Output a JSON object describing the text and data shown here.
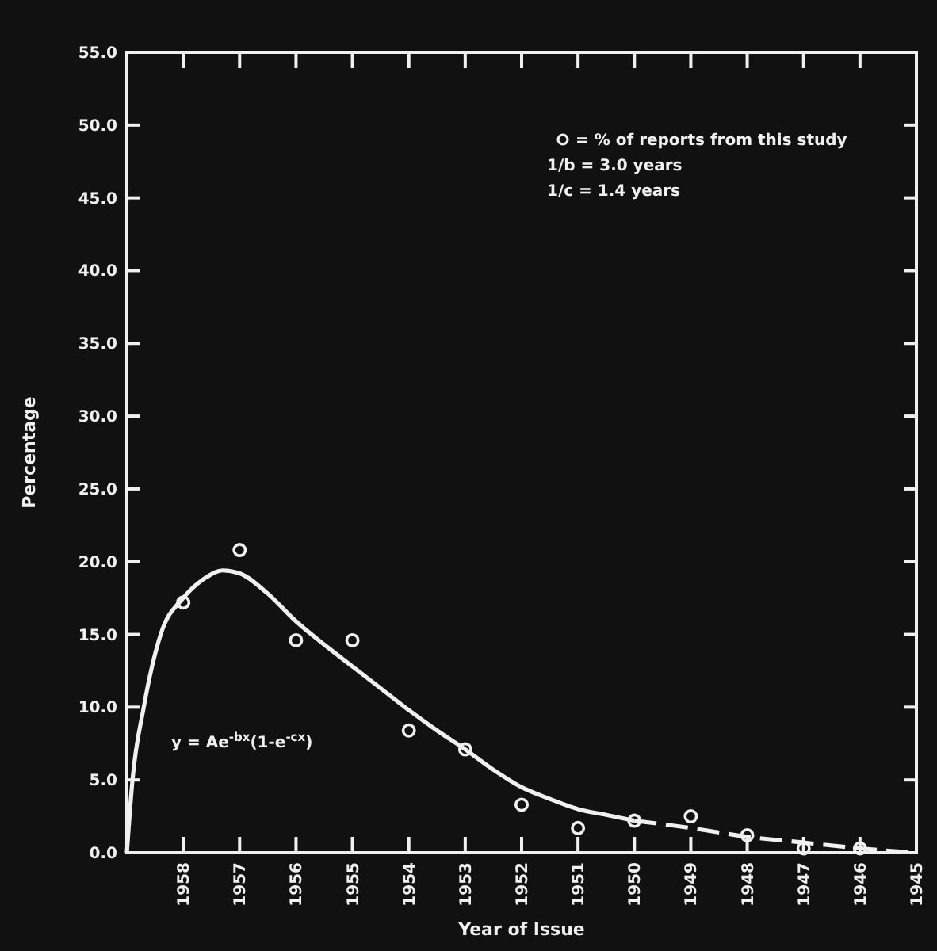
{
  "chart_data": {
    "type": "scatter",
    "xlabel": "Year of Issue",
    "ylabel": "Percentage",
    "xlim": [
      1959,
      1945
    ],
    "xticks": [
      1958,
      1957,
      1956,
      1955,
      1954,
      1953,
      1952,
      1951,
      1950,
      1949,
      1948,
      1947,
      1946,
      1945
    ],
    "ylim": [
      0,
      55
    ],
    "yticks": [
      {
        "value": 0,
        "label": "0.0"
      },
      {
        "value": 5,
        "label": "5.0"
      },
      {
        "value": 10,
        "label": "10.0"
      },
      {
        "value": 15,
        "label": "15.0"
      },
      {
        "value": 20,
        "label": "20.0"
      },
      {
        "value": 25,
        "label": "25.0"
      },
      {
        "value": 30,
        "label": "30.0"
      },
      {
        "value": 35,
        "label": "35.0"
      },
      {
        "value": 40,
        "label": "40.0"
      },
      {
        "value": 45,
        "label": "45.0"
      },
      {
        "value": 50,
        "label": "50.0"
      },
      {
        "value": 55,
        "label": "55.0"
      }
    ],
    "grid": false,
    "legend": "top right",
    "marker": "circle",
    "series": [
      {
        "name": "= % of reports from this study",
        "color": "#f0f0f0",
        "x": [
          1958,
          1957,
          1956,
          1955,
          1954,
          1953,
          1952,
          1951,
          1950,
          1949,
          1948,
          1947,
          1946
        ],
        "values": [
          17.2,
          20.8,
          14.6,
          14.6,
          8.4,
          7.1,
          3.3,
          1.7,
          2.2,
          2.5,
          1.2,
          0.3,
          0.3
        ]
      },
      {
        "type": "line",
        "color": "#f0f0f0",
        "line_style": "solid",
        "marker": "none",
        "x": [
          1959,
          1958.9,
          1958.7,
          1958.4,
          1958,
          1957.6,
          1957.3,
          1957,
          1956.5,
          1956,
          1955.5,
          1955,
          1954.5,
          1954,
          1953.5,
          1953,
          1952.5,
          1952,
          1951.5,
          1951,
          1950.5,
          1950
        ],
        "values": [
          0,
          5,
          10,
          15,
          17.5,
          18.9,
          19.4,
          19.2,
          17.8,
          15.9,
          14.3,
          12.8,
          11.3,
          9.8,
          8.4,
          7.1,
          5.7,
          4.5,
          3.7,
          3.0,
          2.6,
          2.2
        ]
      },
      {
        "type": "line",
        "color": "#f0f0f0",
        "line_style": "dashed",
        "marker": "none",
        "x": [
          1950,
          1949,
          1948,
          1947,
          1946,
          1945
        ],
        "values": [
          2.2,
          1.7,
          1.1,
          0.7,
          0.3,
          0
        ]
      }
    ],
    "annotations": [
      "1/b = 3.0 years",
      "1/c = 1.4 years",
      "y = Ae$^{-bx}$(1-e$^{-cx}$)"
    ]
  }
}
